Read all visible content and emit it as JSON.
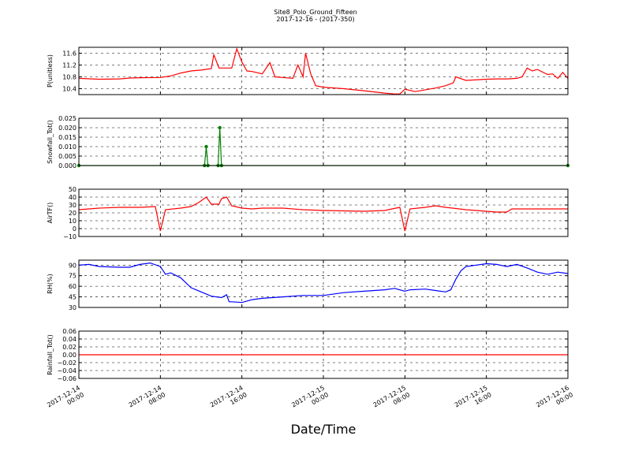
{
  "title": "Site8_Polo_Ground_Fifteen",
  "subtitle": "2017-12-16 - (2017-350)",
  "xlabel": "Date/Time",
  "chart_data": [
    {
      "type": "line",
      "ylabel": "P(unitless)",
      "color": "#ff0000",
      "grid": true,
      "xlim": [
        "2017-12-14 00:00",
        "2017-12-16 00:00"
      ],
      "xticks": [
        "2017-12-14 00:00",
        "2017-12-14 08:00",
        "2017-12-14 16:00",
        "2017-12-15 00:00",
        "2017-12-15 08:00",
        "2017-12-15 16:00",
        "2017-12-16 00:00"
      ],
      "ylim": [
        10.2,
        11.8
      ],
      "yticks": [
        {
          "value": 10.4,
          "label": "10.4"
        },
        {
          "value": 10.8,
          "label": "10.8"
        },
        {
          "value": 11.2,
          "label": "11.2"
        },
        {
          "value": 11.6,
          "label": "11.6"
        }
      ],
      "x": [
        "2017-12-14 00:00",
        "2017-12-14 02:00",
        "2017-12-14 04:00",
        "2017-12-14 05:00",
        "2017-12-14 06:00",
        "2017-12-14 08:00",
        "2017-12-14 09:00",
        "2017-12-14 10:00",
        "2017-12-14 11:00",
        "2017-12-14 12:00",
        "2017-12-14 13:00",
        "2017-12-14 13:15",
        "2017-12-14 13:45",
        "2017-12-14 15:00",
        "2017-12-14 15:30",
        "2017-12-14 16:00",
        "2017-12-14 16:30",
        "2017-12-14 17:00",
        "2017-12-14 18:00",
        "2017-12-14 18:45",
        "2017-12-14 19:15",
        "2017-12-14 20:00",
        "2017-12-14 21:00",
        "2017-12-14 21:30",
        "2017-12-14 22:00",
        "2017-12-14 22:15",
        "2017-12-14 22:45",
        "2017-12-14 23:15",
        "2017-12-15 00:00",
        "2017-12-15 02:00",
        "2017-12-15 04:00",
        "2017-12-15 06:00",
        "2017-12-15 07:00",
        "2017-12-15 07:30",
        "2017-12-15 08:00",
        "2017-12-15 09:00",
        "2017-12-15 11:00",
        "2017-12-15 12:00",
        "2017-12-15 12:45",
        "2017-12-15 13:00",
        "2017-12-15 14:00",
        "2017-12-15 16:00",
        "2017-12-15 17:00",
        "2017-12-15 18:00",
        "2017-12-15 19:00",
        "2017-12-15 19:30",
        "2017-12-15 20:00",
        "2017-12-15 20:30",
        "2017-12-15 21:00",
        "2017-12-15 22:00",
        "2017-12-15 22:30",
        "2017-12-15 23:00",
        "2017-12-15 23:30",
        "2017-12-16 00:00"
      ],
      "values": [
        10.75,
        10.72,
        10.73,
        10.76,
        10.77,
        10.78,
        10.83,
        10.93,
        11.0,
        11.03,
        11.08,
        11.55,
        11.1,
        11.1,
        11.75,
        11.3,
        11.0,
        10.98,
        10.9,
        11.28,
        10.8,
        10.78,
        10.75,
        11.2,
        10.8,
        11.6,
        10.9,
        10.5,
        10.45,
        10.4,
        10.33,
        10.25,
        10.22,
        10.22,
        10.38,
        10.3,
        10.42,
        10.5,
        10.6,
        10.8,
        10.68,
        10.72,
        10.73,
        10.73,
        10.75,
        10.8,
        11.1,
        11.0,
        11.05,
        10.88,
        10.9,
        10.75,
        10.95,
        10.75
      ]
    },
    {
      "type": "line",
      "ylabel": "Snowfall_Tot()",
      "color": "#008000",
      "markers": true,
      "grid": true,
      "xlim": [
        "2017-12-14 00:00",
        "2017-12-16 00:00"
      ],
      "xticks": [
        "2017-12-14 00:00",
        "2017-12-14 08:00",
        "2017-12-14 16:00",
        "2017-12-15 00:00",
        "2017-12-15 08:00",
        "2017-12-15 16:00",
        "2017-12-16 00:00"
      ],
      "ylim": [
        0,
        0.025
      ],
      "yticks": [
        {
          "value": 0,
          "label": "0.000"
        },
        {
          "value": 0.005,
          "label": "0.005"
        },
        {
          "value": 0.01,
          "label": "0.010"
        },
        {
          "value": 0.015,
          "label": "0.015"
        },
        {
          "value": 0.02,
          "label": "0.020"
        },
        {
          "value": 0.025,
          "label": "0.025"
        }
      ],
      "x": [
        "2017-12-14 00:00",
        "2017-12-14 12:20",
        "2017-12-14 12:30",
        "2017-12-14 12:40",
        "2017-12-14 13:40",
        "2017-12-14 13:50",
        "2017-12-14 14:00",
        "2017-12-16 00:00"
      ],
      "values": [
        0,
        0,
        0.01,
        0,
        0,
        0.02,
        0,
        0
      ]
    },
    {
      "type": "line",
      "ylabel": "AirTF()",
      "color": "#ff0000",
      "grid": true,
      "xlim": [
        "2017-12-14 00:00",
        "2017-12-16 00:00"
      ],
      "xticks": [
        "2017-12-14 00:00",
        "2017-12-14 08:00",
        "2017-12-14 16:00",
        "2017-12-15 00:00",
        "2017-12-15 08:00",
        "2017-12-15 16:00",
        "2017-12-16 00:00"
      ],
      "ylim": [
        -10,
        50
      ],
      "yticks": [
        {
          "value": -10,
          "label": "−10"
        },
        0,
        10,
        20,
        30,
        40,
        50
      ],
      "x": [
        "2017-12-14 00:00",
        "2017-12-14 02:00",
        "2017-12-14 04:00",
        "2017-12-14 06:00",
        "2017-12-14 07:30",
        "2017-12-14 08:00",
        "2017-12-14 08:30",
        "2017-12-14 10:00",
        "2017-12-14 11:00",
        "2017-12-14 11:45",
        "2017-12-14 12:30",
        "2017-12-14 13:00",
        "2017-12-14 13:45",
        "2017-12-14 14:00",
        "2017-12-14 14:30",
        "2017-12-14 15:00",
        "2017-12-14 16:00",
        "2017-12-14 17:00",
        "2017-12-14 18:00",
        "2017-12-14 20:00",
        "2017-12-14 22:00",
        "2017-12-15 00:00",
        "2017-12-15 04:00",
        "2017-12-15 06:00",
        "2017-12-15 07:30",
        "2017-12-15 08:00",
        "2017-12-15 08:30",
        "2017-12-15 10:00",
        "2017-12-15 11:00",
        "2017-12-15 12:00",
        "2017-12-15 14:00",
        "2017-12-15 16:00",
        "2017-12-15 17:00",
        "2017-12-15 18:00",
        "2017-12-15 18:30",
        "2017-12-15 20:00",
        "2017-12-15 22:00",
        "2017-12-16 00:00"
      ],
      "values": [
        24,
        26,
        27,
        27,
        28,
        -3,
        24,
        26,
        28,
        33,
        40,
        31,
        31,
        38,
        40,
        29,
        26,
        25,
        26,
        26,
        24,
        23,
        22,
        23,
        27,
        -3,
        25,
        27,
        29,
        27,
        24,
        22,
        21,
        21,
        25,
        25,
        25,
        25
      ]
    },
    {
      "type": "line",
      "ylabel": "RH(%)",
      "color": "#0000ff",
      "grid": true,
      "xlim": [
        "2017-12-14 00:00",
        "2017-12-16 00:00"
      ],
      "xticks": [
        "2017-12-14 00:00",
        "2017-12-14 08:00",
        "2017-12-14 16:00",
        "2017-12-15 00:00",
        "2017-12-15 08:00",
        "2017-12-15 16:00",
        "2017-12-16 00:00"
      ],
      "ylim": [
        30,
        97
      ],
      "yticks": [
        30,
        45,
        60,
        75,
        90
      ],
      "x": [
        "2017-12-14 00:00",
        "2017-12-14 01:00",
        "2017-12-14 02:00",
        "2017-12-14 04:00",
        "2017-12-14 05:00",
        "2017-12-14 06:00",
        "2017-12-14 07:00",
        "2017-12-14 08:00",
        "2017-12-14 08:30",
        "2017-12-14 09:00",
        "2017-12-14 10:00",
        "2017-12-14 11:00",
        "2017-12-14 12:00",
        "2017-12-14 13:00",
        "2017-12-14 14:00",
        "2017-12-14 14:30",
        "2017-12-14 14:45",
        "2017-12-14 15:00",
        "2017-12-14 16:00",
        "2017-12-14 17:00",
        "2017-12-14 18:00",
        "2017-12-14 20:00",
        "2017-12-14 22:00",
        "2017-12-15 00:00",
        "2017-12-15 02:00",
        "2017-12-15 04:00",
        "2017-12-15 06:00",
        "2017-12-15 07:00",
        "2017-12-15 08:00",
        "2017-12-15 08:30",
        "2017-12-15 10:00",
        "2017-12-15 11:00",
        "2017-12-15 12:00",
        "2017-12-15 12:30",
        "2017-12-15 13:00",
        "2017-12-15 13:30",
        "2017-12-15 14:00",
        "2017-12-15 15:00",
        "2017-12-15 16:00",
        "2017-12-15 17:00",
        "2017-12-15 18:00",
        "2017-12-15 19:00",
        "2017-12-15 20:00",
        "2017-12-15 21:00",
        "2017-12-15 22:00",
        "2017-12-15 23:00",
        "2017-12-16 00:00"
      ],
      "values": [
        90,
        91,
        88,
        87,
        87,
        91,
        93,
        88,
        77,
        79,
        72,
        58,
        52,
        46,
        44,
        48,
        38,
        38,
        37,
        41,
        43,
        45,
        47,
        47,
        51,
        53,
        55,
        57,
        53,
        55,
        56,
        54,
        52,
        55,
        70,
        82,
        88,
        90,
        92,
        91,
        88,
        91,
        86,
        80,
        77,
        80,
        78
      ]
    },
    {
      "type": "line",
      "ylabel": "Rainfall_Tot()",
      "color": "#ff0000",
      "grid": true,
      "xlim": [
        "2017-12-14 00:00",
        "2017-12-16 00:00"
      ],
      "xticks": [
        "2017-12-14 00:00",
        "2017-12-14 08:00",
        "2017-12-14 16:00",
        "2017-12-15 00:00",
        "2017-12-15 08:00",
        "2017-12-15 16:00",
        "2017-12-16 00:00"
      ],
      "ylim": [
        -0.06,
        0.06
      ],
      "yticks": [
        {
          "value": -0.06,
          "label": "−0.06"
        },
        {
          "value": -0.04,
          "label": "−0.04"
        },
        {
          "value": -0.02,
          "label": "−0.02"
        },
        {
          "value": 0,
          "label": "0.00"
        },
        {
          "value": 0.02,
          "label": "0.02"
        },
        {
          "value": 0.04,
          "label": "0.04"
        },
        {
          "value": 0.06,
          "label": "0.06"
        }
      ],
      "x": [
        "2017-12-14 00:00",
        "2017-12-16 00:00"
      ],
      "values": [
        0,
        0
      ]
    }
  ]
}
